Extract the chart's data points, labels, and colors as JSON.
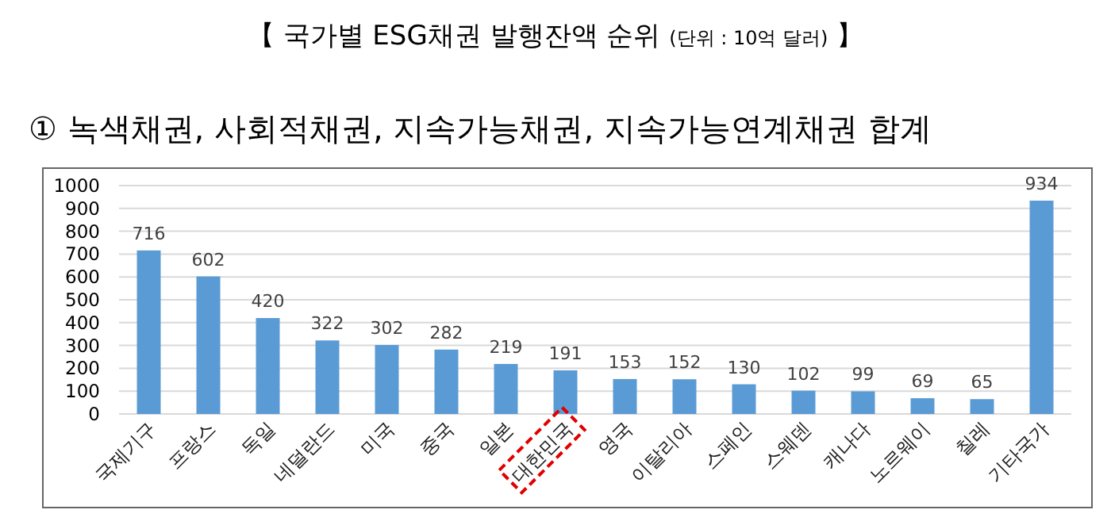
{
  "chart_data": {
    "type": "bar",
    "title": "【 국가별 ESG채권 발행잔액 순위 (단위 : 10억 달러) 】",
    "subtitle": "① 녹색채권, 사회적채권, 지속가능채권, 지속가능연계채권 합계",
    "categories": [
      "국제기구",
      "프랑스",
      "독일",
      "네덜란드",
      "미국",
      "중국",
      "일본",
      "대한민국",
      "영국",
      "이탈리아",
      "스페인",
      "스웨덴",
      "캐나다",
      "노르웨이",
      "칠레",
      "기타국가"
    ],
    "values": [
      716,
      602,
      420,
      322,
      302,
      282,
      219,
      191,
      153,
      152,
      130,
      102,
      99,
      69,
      65,
      934
    ],
    "color": "#5b9bd5",
    "ylim": [
      0,
      1000
    ],
    "yticks": [
      0,
      100,
      200,
      300,
      400,
      500,
      600,
      700,
      800,
      900,
      1000
    ],
    "grid": "y",
    "data_labels": true
  }
}
